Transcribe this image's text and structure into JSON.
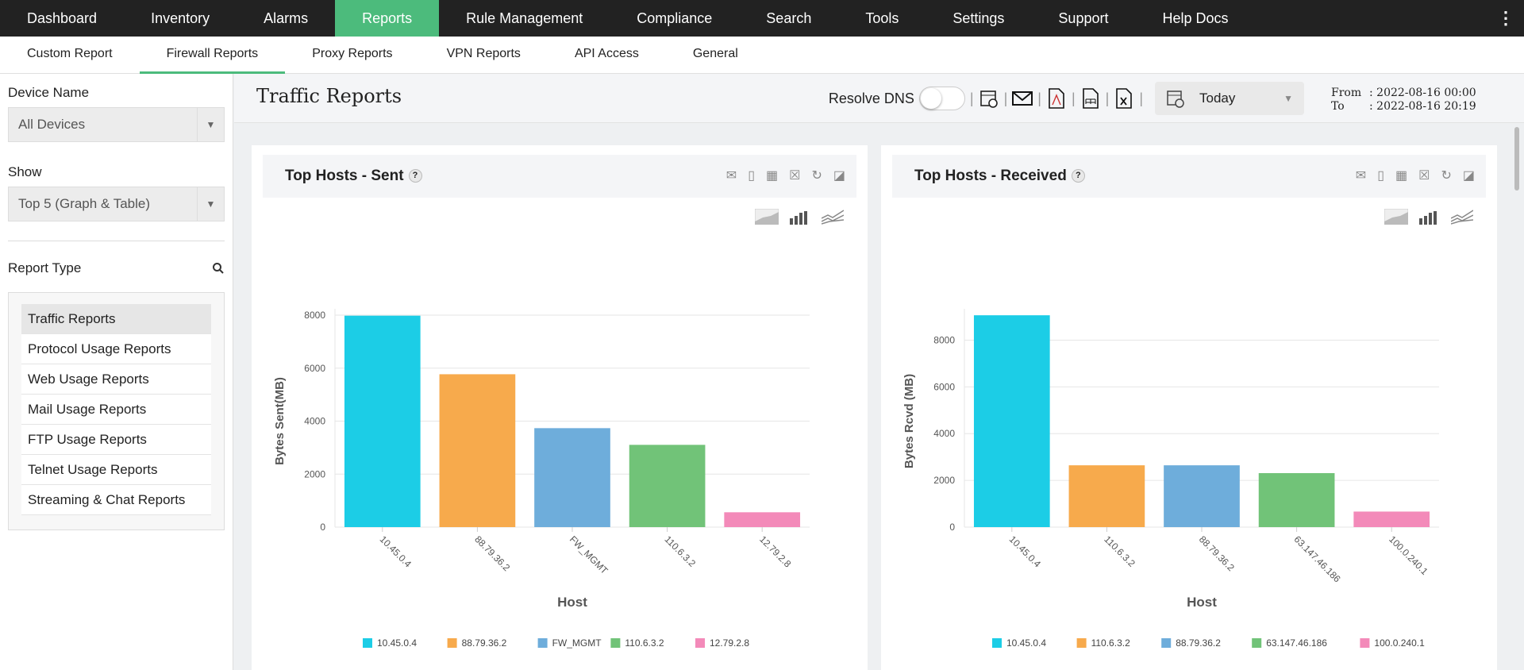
{
  "topnav": {
    "items": [
      "Dashboard",
      "Inventory",
      "Alarms",
      "Reports",
      "Rule Management",
      "Compliance",
      "Search",
      "Tools",
      "Settings",
      "Support",
      "Help Docs"
    ],
    "active": "Reports",
    "accent": "#4cbb7c"
  },
  "subnav": {
    "items": [
      "Custom Report",
      "Firewall Reports",
      "Proxy Reports",
      "VPN Reports",
      "API Access",
      "General"
    ],
    "active": "Firewall Reports"
  },
  "sidebar": {
    "device_label": "Device Name",
    "device_value": "All Devices",
    "show_label": "Show",
    "show_value": "Top 5 (Graph & Table)",
    "report_type_label": "Report Type",
    "report_types": [
      "Traffic Reports",
      "Protocol Usage Reports",
      "Web Usage Reports",
      "Mail Usage Reports",
      "FTP Usage Reports",
      "Telnet Usage Reports",
      "Streaming & Chat Reports"
    ],
    "active_report": "Traffic Reports"
  },
  "header": {
    "title": "Traffic Reports",
    "resolve_dns": "Resolve DNS",
    "resolve_dns_on": false,
    "period": "Today",
    "from_label": "From",
    "from_value": ": 2022-08-16 00:00",
    "to_label": "To",
    "to_value": ": 2022-08-16 20:19"
  },
  "chart_data": [
    {
      "type": "bar",
      "title": "Top Hosts - Sent",
      "xlabel": "Host",
      "ylabel": "Bytes Sent(MB)",
      "categories": [
        "10.45.0.4",
        "88.79.36.2",
        "FW_MGMT",
        "110.6.3.2",
        "12.79.2.8"
      ],
      "values": [
        7980,
        5770,
        3735,
        3105,
        560
      ],
      "ylim": [
        0,
        8000
      ],
      "yticks": [
        0,
        2000,
        4000,
        6000,
        8000
      ],
      "colors": [
        "#1ccde6",
        "#f7aa4c",
        "#6eaddb",
        "#71c378",
        "#f38ab9"
      ],
      "grid": true,
      "legend": "bottom"
    },
    {
      "type": "bar",
      "title": "Top Hosts - Received",
      "xlabel": "Host",
      "ylabel": "Bytes Rcvd (MB)",
      "categories": [
        "10.45.0.4",
        "110.6.3.2",
        "88.79.36.2",
        "63.147.46.186",
        "100.0.240.1"
      ],
      "values": [
        9065,
        2645,
        2645,
        2310,
        665
      ],
      "ylim": [
        0,
        9070
      ],
      "yticks": [
        0,
        2000,
        4000,
        6000,
        8000
      ],
      "colors": [
        "#1ccde6",
        "#f7aa4c",
        "#6eaddb",
        "#71c378",
        "#f38ab9"
      ],
      "grid": true,
      "legend": "bottom"
    }
  ]
}
